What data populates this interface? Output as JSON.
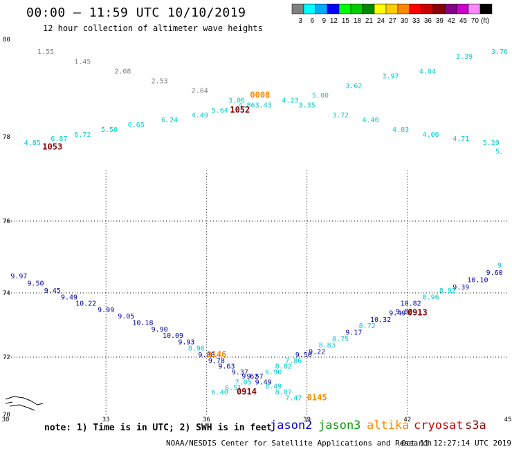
{
  "header": {
    "title": "00:00 – 11:59 UTC 10/10/2019",
    "subtitle": "12 hour collection of altimeter wave heights"
  },
  "colorbar": {
    "unit": "(ft)",
    "bins": [
      {
        "label": "3",
        "color": "#808080"
      },
      {
        "label": "6",
        "color": "#00ffff"
      },
      {
        "label": "9",
        "color": "#00aaff"
      },
      {
        "label": "12",
        "color": "#0000ff"
      },
      {
        "label": "15",
        "color": "#00ff00"
      },
      {
        "label": "18",
        "color": "#00cc00"
      },
      {
        "label": "21",
        "color": "#008800"
      },
      {
        "label": "24",
        "color": "#ffff00"
      },
      {
        "label": "27",
        "color": "#ffcc00"
      },
      {
        "label": "30",
        "color": "#ff8800"
      },
      {
        "label": "33",
        "color": "#ff0000"
      },
      {
        "label": "36",
        "color": "#cc0000"
      },
      {
        "label": "39",
        "color": "#880000"
      },
      {
        "label": "42",
        "color": "#880088"
      },
      {
        "label": "45",
        "color": "#cc00cc"
      },
      {
        "label": "70",
        "color": "#ff88ff"
      },
      {
        "label": "",
        "color": "#000000"
      }
    ]
  },
  "map": {
    "lat_labels": [
      {
        "text": "80",
        "lat": 80
      },
      {
        "text": "78",
        "lat": 78
      },
      {
        "text": "76",
        "lat": 76
      },
      {
        "text": "74",
        "lat": 74
      },
      {
        "text": "72",
        "lat": 72
      },
      {
        "text": "70",
        "lat": 70
      }
    ],
    "lon_labels": [
      {
        "text": "30",
        "lon": 30
      },
      {
        "text": "33",
        "lon": 33
      },
      {
        "text": "36",
        "lon": 36
      },
      {
        "text": "39",
        "lon": 39
      },
      {
        "text": "42",
        "lon": 42
      },
      {
        "text": "45",
        "lon": 45
      }
    ],
    "wave_readings": [
      {
        "text": "1.55",
        "lon": 31.2,
        "lat": 79.7,
        "color": "#808080"
      },
      {
        "text": "1.45",
        "lon": 32.3,
        "lat": 79.5,
        "color": "#808080"
      },
      {
        "text": "2.08",
        "lon": 33.5,
        "lat": 79.3,
        "color": "#808080"
      },
      {
        "text": "2.53",
        "lon": 34.6,
        "lat": 79.1,
        "color": "#808080"
      },
      {
        "text": "2.64",
        "lon": 35.8,
        "lat": 78.9,
        "color": "#808080"
      },
      {
        "text": "3.06",
        "lon": 36.9,
        "lat": 78.7,
        "color": "#00cccc"
      },
      {
        "text": "4.86",
        "lon": 37.2,
        "lat": 78.6,
        "color": "#00cccc"
      },
      {
        "text": "3.43",
        "lon": 37.7,
        "lat": 78.6,
        "color": "#00cccc"
      },
      {
        "text": "4.23",
        "lon": 38.5,
        "lat": 78.7,
        "color": "#00cccc"
      },
      {
        "text": "5.64",
        "lon": 36.4,
        "lat": 78.5,
        "color": "#00cccc"
      },
      {
        "text": "4.49",
        "lon": 35.8,
        "lat": 78.4,
        "color": "#00cccc"
      },
      {
        "text": "6.24",
        "lon": 34.9,
        "lat": 78.3,
        "color": "#00cccc"
      },
      {
        "text": "6.65",
        "lon": 33.9,
        "lat": 78.2,
        "color": "#00cccc"
      },
      {
        "text": "5.50",
        "lon": 33.1,
        "lat": 78.1,
        "color": "#00cccc"
      },
      {
        "text": "6.72",
        "lon": 32.3,
        "lat": 78.0,
        "color": "#00cccc"
      },
      {
        "text": "6.87",
        "lon": 31.6,
        "lat": 77.9,
        "color": "#00cccc"
      },
      {
        "text": "4.85",
        "lon": 30.8,
        "lat": 77.8,
        "color": "#00cccc"
      },
      {
        "text": "5.00",
        "lon": 39.4,
        "lat": 78.8,
        "color": "#00cccc"
      },
      {
        "text": "3.62",
        "lon": 40.4,
        "lat": 79.0,
        "color": "#00cccc"
      },
      {
        "text": "3.97",
        "lon": 41.5,
        "lat": 79.2,
        "color": "#00cccc"
      },
      {
        "text": "4.04",
        "lon": 42.6,
        "lat": 79.3,
        "color": "#00cccc"
      },
      {
        "text": "3.39",
        "lon": 43.7,
        "lat": 79.6,
        "color": "#00cccc"
      },
      {
        "text": "3.76",
        "lon": 44.8,
        "lat": 79.7,
        "color": "#00cccc"
      },
      {
        "text": "3.35",
        "lon": 39.0,
        "lat": 78.6,
        "color": "#00cccc"
      },
      {
        "text": "3.72",
        "lon": 40.0,
        "lat": 78.4,
        "color": "#00cccc"
      },
      {
        "text": "4.40",
        "lon": 40.9,
        "lat": 78.3,
        "color": "#00cccc"
      },
      {
        "text": "4.03",
        "lon": 41.8,
        "lat": 78.1,
        "color": "#00cccc"
      },
      {
        "text": "4.06",
        "lon": 42.7,
        "lat": 78.0,
        "color": "#00cccc"
      },
      {
        "text": "4.71",
        "lon": 43.6,
        "lat": 77.9,
        "color": "#00cccc"
      },
      {
        "text": "5.20",
        "lon": 44.5,
        "lat": 77.8,
        "color": "#00cccc"
      },
      {
        "text": "5.",
        "lon": 45.0,
        "lat": 77.6,
        "color": "#00cccc"
      },
      {
        "text": "9.97",
        "lon": 30.4,
        "lat": 74.4,
        "color": "#0000aa"
      },
      {
        "text": "9.50",
        "lon": 30.9,
        "lat": 74.2,
        "color": "#0000aa"
      },
      {
        "text": "9.45",
        "lon": 31.4,
        "lat": 74.0,
        "color": "#0000aa"
      },
      {
        "text": "9.49",
        "lon": 31.9,
        "lat": 73.8,
        "color": "#0000aa"
      },
      {
        "text": "10.22",
        "lon": 32.4,
        "lat": 73.6,
        "color": "#0000aa"
      },
      {
        "text": "9.99",
        "lon": 33.0,
        "lat": 73.4,
        "color": "#0000aa"
      },
      {
        "text": "9.05",
        "lon": 33.6,
        "lat": 73.2,
        "color": "#0000aa"
      },
      {
        "text": "10.18",
        "lon": 34.1,
        "lat": 73.0,
        "color": "#0000aa"
      },
      {
        "text": "9.90",
        "lon": 34.6,
        "lat": 72.8,
        "color": "#0000aa"
      },
      {
        "text": "10.09",
        "lon": 35.0,
        "lat": 72.6,
        "color": "#0000aa"
      },
      {
        "text": "9.93",
        "lon": 35.4,
        "lat": 72.4,
        "color": "#0000aa"
      },
      {
        "text": "8.96",
        "lon": 35.7,
        "lat": 72.2,
        "color": "#00cccc"
      },
      {
        "text": "9.88",
        "lon": 36.0,
        "lat": 72.0,
        "color": "#0000aa"
      },
      {
        "text": "9.78",
        "lon": 36.3,
        "lat": 71.8,
        "color": "#0000aa"
      },
      {
        "text": "9.63",
        "lon": 36.6,
        "lat": 71.6,
        "color": "#0000aa"
      },
      {
        "text": "9.37",
        "lon": 37.0,
        "lat": 71.4,
        "color": "#0000aa"
      },
      {
        "text": "9.62",
        "lon": 37.3,
        "lat": 71.25,
        "color": "#0000aa"
      },
      {
        "text": "9.57",
        "lon": 37.45,
        "lat": 71.25,
        "color": "#0000aa"
      },
      {
        "text": "9.49",
        "lon": 37.7,
        "lat": 71.05,
        "color": "#0000aa"
      },
      {
        "text": "7.05",
        "lon": 37.1,
        "lat": 71.05,
        "color": "#00cccc"
      },
      {
        "text": "6.51",
        "lon": 36.8,
        "lat": 70.85,
        "color": "#00cccc"
      },
      {
        "text": "6.40",
        "lon": 36.4,
        "lat": 70.7,
        "color": "#00cccc"
      },
      {
        "text": "6.90",
        "lon": 38.0,
        "lat": 71.4,
        "color": "#00cccc"
      },
      {
        "text": "8.82",
        "lon": 38.3,
        "lat": 71.6,
        "color": "#00cccc"
      },
      {
        "text": "7.86",
        "lon": 38.6,
        "lat": 71.8,
        "color": "#00cccc"
      },
      {
        "text": "8.49",
        "lon": 38.0,
        "lat": 70.9,
        "color": "#00cccc"
      },
      {
        "text": "8.07",
        "lon": 38.3,
        "lat": 70.7,
        "color": "#00cccc"
      },
      {
        "text": "7.47",
        "lon": 38.6,
        "lat": 70.5,
        "color": "#00cccc"
      },
      {
        "text": "9.50",
        "lon": 38.9,
        "lat": 72.0,
        "color": "#0000aa"
      },
      {
        "text": "9.22",
        "lon": 39.3,
        "lat": 72.1,
        "color": "#0000aa"
      },
      {
        "text": "8.83",
        "lon": 39.6,
        "lat": 72.3,
        "color": "#00cccc"
      },
      {
        "text": "8.75",
        "lon": 40.0,
        "lat": 72.5,
        "color": "#00cccc"
      },
      {
        "text": "9.17",
        "lon": 40.4,
        "lat": 72.7,
        "color": "#0000aa"
      },
      {
        "text": "8.72",
        "lon": 40.8,
        "lat": 72.9,
        "color": "#00cccc"
      },
      {
        "text": "10.32",
        "lon": 41.2,
        "lat": 73.1,
        "color": "#0000aa"
      },
      {
        "text": "9.49",
        "lon": 41.7,
        "lat": 73.3,
        "color": "#0000aa"
      },
      {
        "text": "9.80",
        "lon": 41.9,
        "lat": 73.35,
        "color": "#0000aa"
      },
      {
        "text": "10.82",
        "lon": 42.1,
        "lat": 73.6,
        "color": "#0000aa"
      },
      {
        "text": "8.96",
        "lon": 42.7,
        "lat": 73.8,
        "color": "#00cccc"
      },
      {
        "text": "8.92",
        "lon": 43.2,
        "lat": 74.0,
        "color": "#00cccc"
      },
      {
        "text": "9.39",
        "lon": 43.6,
        "lat": 74.1,
        "color": "#0000aa"
      },
      {
        "text": "10.10",
        "lon": 44.1,
        "lat": 74.3,
        "color": "#0000aa"
      },
      {
        "text": "9.60",
        "lon": 44.6,
        "lat": 74.5,
        "color": "#0000aa"
      },
      {
        "text": "9",
        "lon": 45.0,
        "lat": 74.7,
        "color": "#00cccc"
      }
    ],
    "pass_times": [
      {
        "text": "1053",
        "lon": 31.4,
        "lat": 77.7,
        "color": "#880000"
      },
      {
        "text": "1052",
        "lon": 37.0,
        "lat": 78.5,
        "color": "#880000"
      },
      {
        "text": "0008",
        "lon": 37.6,
        "lat": 78.8,
        "color": "#ff8800"
      },
      {
        "text": "0146",
        "lon": 36.3,
        "lat": 72.0,
        "color": "#ff8800"
      },
      {
        "text": "0914",
        "lon": 37.2,
        "lat": 70.7,
        "color": "#880000"
      },
      {
        "text": "0145",
        "lon": 39.3,
        "lat": 70.5,
        "color": "#ff8800"
      },
      {
        "text": "0913",
        "lon": 42.3,
        "lat": 73.3,
        "color": "#880000"
      }
    ]
  },
  "footer": {
    "note": "note: 1) Time is in UTC; 2) SWH is in feet",
    "satellites": [
      {
        "text": "jason2",
        "color": "#0000cc"
      },
      {
        "text": "jason3",
        "color": "#009900"
      },
      {
        "text": "altika",
        "color": "#ff8800"
      },
      {
        "text": "cryosat",
        "color": "#cc0000"
      },
      {
        "text": "s3a",
        "color": "#880000"
      }
    ],
    "credit": "NOAA/NESDIS Center for Satellite Applications and Research",
    "timestamp": "Oct 11 12:27:14 UTC 2019"
  }
}
